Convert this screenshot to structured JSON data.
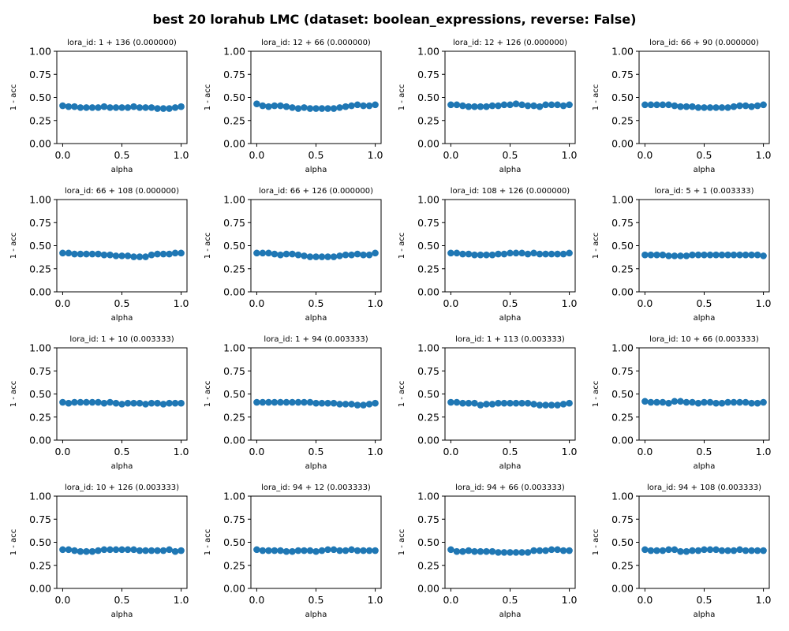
{
  "figure_title": "best 20 lorahub LMC (dataset: boolean_expressions, reverse: False)",
  "chart_data": [
    {
      "type": "scatter",
      "title": "lora_id: 1 + 136 (0.000000)",
      "xlabel": "alpha",
      "ylabel": "1 - acc",
      "xlim": [
        0,
        1
      ],
      "ylim": [
        0,
        1
      ],
      "xticks": [
        "0.0",
        "0.5",
        "1.0"
      ],
      "yticks": [
        "0.00",
        "0.25",
        "0.50",
        "0.75",
        "1.00"
      ],
      "x": [
        0,
        0.05,
        0.1,
        0.15,
        0.2,
        0.25,
        0.3,
        0.35,
        0.4,
        0.45,
        0.5,
        0.55,
        0.6,
        0.65,
        0.7,
        0.75,
        0.8,
        0.85,
        0.9,
        0.95,
        1.0
      ],
      "y": [
        0.41,
        0.4,
        0.4,
        0.39,
        0.39,
        0.39,
        0.39,
        0.4,
        0.39,
        0.39,
        0.39,
        0.39,
        0.4,
        0.39,
        0.39,
        0.39,
        0.38,
        0.38,
        0.38,
        0.39,
        0.4
      ]
    },
    {
      "type": "scatter",
      "title": "lora_id: 12 + 66 (0.000000)",
      "xlabel": "alpha",
      "ylabel": "1 - acc",
      "xlim": [
        0,
        1
      ],
      "ylim": [
        0,
        1
      ],
      "xticks": [
        "0.0",
        "0.5",
        "1.0"
      ],
      "yticks": [
        "0.00",
        "0.25",
        "0.50",
        "0.75",
        "1.00"
      ],
      "x": [
        0,
        0.05,
        0.1,
        0.15,
        0.2,
        0.25,
        0.3,
        0.35,
        0.4,
        0.45,
        0.5,
        0.55,
        0.6,
        0.65,
        0.7,
        0.75,
        0.8,
        0.85,
        0.9,
        0.95,
        1.0
      ],
      "y": [
        0.43,
        0.41,
        0.4,
        0.41,
        0.41,
        0.4,
        0.39,
        0.38,
        0.39,
        0.38,
        0.38,
        0.38,
        0.38,
        0.38,
        0.39,
        0.4,
        0.41,
        0.42,
        0.41,
        0.41,
        0.42
      ]
    },
    {
      "type": "scatter",
      "title": "lora_id: 12 + 126 (0.000000)",
      "xlabel": "alpha",
      "ylabel": "1 - acc",
      "xlim": [
        0,
        1
      ],
      "ylim": [
        0,
        1
      ],
      "xticks": [
        "0.0",
        "0.5",
        "1.0"
      ],
      "yticks": [
        "0.00",
        "0.25",
        "0.50",
        "0.75",
        "1.00"
      ],
      "x": [
        0,
        0.05,
        0.1,
        0.15,
        0.2,
        0.25,
        0.3,
        0.35,
        0.4,
        0.45,
        0.5,
        0.55,
        0.6,
        0.65,
        0.7,
        0.75,
        0.8,
        0.85,
        0.9,
        0.95,
        1.0
      ],
      "y": [
        0.42,
        0.42,
        0.41,
        0.4,
        0.4,
        0.4,
        0.4,
        0.41,
        0.41,
        0.42,
        0.42,
        0.43,
        0.42,
        0.41,
        0.41,
        0.4,
        0.42,
        0.42,
        0.42,
        0.41,
        0.42
      ]
    },
    {
      "type": "scatter",
      "title": "lora_id: 66 + 90 (0.000000)",
      "xlabel": "alpha",
      "ylabel": "1 - acc",
      "xlim": [
        0,
        1
      ],
      "ylim": [
        0,
        1
      ],
      "xticks": [
        "0.0",
        "0.5",
        "1.0"
      ],
      "yticks": [
        "0.00",
        "0.25",
        "0.50",
        "0.75",
        "1.00"
      ],
      "x": [
        0,
        0.05,
        0.1,
        0.15,
        0.2,
        0.25,
        0.3,
        0.35,
        0.4,
        0.45,
        0.5,
        0.55,
        0.6,
        0.65,
        0.7,
        0.75,
        0.8,
        0.85,
        0.9,
        0.95,
        1.0
      ],
      "y": [
        0.42,
        0.42,
        0.42,
        0.42,
        0.42,
        0.41,
        0.4,
        0.4,
        0.4,
        0.39,
        0.39,
        0.39,
        0.39,
        0.39,
        0.39,
        0.4,
        0.41,
        0.41,
        0.4,
        0.41,
        0.42
      ]
    },
    {
      "type": "scatter",
      "title": "lora_id: 66 + 108 (0.000000)",
      "xlabel": "alpha",
      "ylabel": "1 - acc",
      "xlim": [
        0,
        1
      ],
      "ylim": [
        0,
        1
      ],
      "xticks": [
        "0.0",
        "0.5",
        "1.0"
      ],
      "yticks": [
        "0.00",
        "0.25",
        "0.50",
        "0.75",
        "1.00"
      ],
      "x": [
        0,
        0.05,
        0.1,
        0.15,
        0.2,
        0.25,
        0.3,
        0.35,
        0.4,
        0.45,
        0.5,
        0.55,
        0.6,
        0.65,
        0.7,
        0.75,
        0.8,
        0.85,
        0.9,
        0.95,
        1.0
      ],
      "y": [
        0.42,
        0.42,
        0.41,
        0.41,
        0.41,
        0.41,
        0.41,
        0.4,
        0.4,
        0.39,
        0.39,
        0.39,
        0.38,
        0.38,
        0.38,
        0.4,
        0.41,
        0.41,
        0.41,
        0.42,
        0.42
      ]
    },
    {
      "type": "scatter",
      "title": "lora_id: 66 + 126 (0.000000)",
      "xlabel": "alpha",
      "ylabel": "1 - acc",
      "xlim": [
        0,
        1
      ],
      "ylim": [
        0,
        1
      ],
      "xticks": [
        "0.0",
        "0.5",
        "1.0"
      ],
      "yticks": [
        "0.00",
        "0.25",
        "0.50",
        "0.75",
        "1.00"
      ],
      "x": [
        0,
        0.05,
        0.1,
        0.15,
        0.2,
        0.25,
        0.3,
        0.35,
        0.4,
        0.45,
        0.5,
        0.55,
        0.6,
        0.65,
        0.7,
        0.75,
        0.8,
        0.85,
        0.9,
        0.95,
        1.0
      ],
      "y": [
        0.42,
        0.42,
        0.42,
        0.41,
        0.4,
        0.41,
        0.41,
        0.4,
        0.39,
        0.38,
        0.38,
        0.38,
        0.38,
        0.38,
        0.39,
        0.4,
        0.4,
        0.41,
        0.4,
        0.4,
        0.42
      ]
    },
    {
      "type": "scatter",
      "title": "lora_id: 108 + 126 (0.000000)",
      "xlabel": "alpha",
      "ylabel": "1 - acc",
      "xlim": [
        0,
        1
      ],
      "ylim": [
        0,
        1
      ],
      "xticks": [
        "0.0",
        "0.5",
        "1.0"
      ],
      "yticks": [
        "0.00",
        "0.25",
        "0.50",
        "0.75",
        "1.00"
      ],
      "x": [
        0,
        0.05,
        0.1,
        0.15,
        0.2,
        0.25,
        0.3,
        0.35,
        0.4,
        0.45,
        0.5,
        0.55,
        0.6,
        0.65,
        0.7,
        0.75,
        0.8,
        0.85,
        0.9,
        0.95,
        1.0
      ],
      "y": [
        0.42,
        0.42,
        0.41,
        0.41,
        0.4,
        0.4,
        0.4,
        0.4,
        0.41,
        0.41,
        0.42,
        0.42,
        0.42,
        0.41,
        0.42,
        0.41,
        0.41,
        0.41,
        0.41,
        0.41,
        0.42
      ]
    },
    {
      "type": "scatter",
      "title": "lora_id: 5 + 1 (0.003333)",
      "xlabel": "alpha",
      "ylabel": "1 - acc",
      "xlim": [
        0,
        1
      ],
      "ylim": [
        0,
        1
      ],
      "xticks": [
        "0.0",
        "0.5",
        "1.0"
      ],
      "yticks": [
        "0.00",
        "0.25",
        "0.50",
        "0.75",
        "1.00"
      ],
      "x": [
        0,
        0.05,
        0.1,
        0.15,
        0.2,
        0.25,
        0.3,
        0.35,
        0.4,
        0.45,
        0.5,
        0.55,
        0.6,
        0.65,
        0.7,
        0.75,
        0.8,
        0.85,
        0.9,
        0.95,
        1.0
      ],
      "y": [
        0.4,
        0.4,
        0.4,
        0.4,
        0.39,
        0.39,
        0.39,
        0.39,
        0.4,
        0.4,
        0.4,
        0.4,
        0.4,
        0.4,
        0.4,
        0.4,
        0.4,
        0.4,
        0.4,
        0.4,
        0.39
      ]
    },
    {
      "type": "scatter",
      "title": "lora_id: 1 + 10 (0.003333)",
      "xlabel": "alpha",
      "ylabel": "1 - acc",
      "xlim": [
        0,
        1
      ],
      "ylim": [
        0,
        1
      ],
      "xticks": [
        "0.0",
        "0.5",
        "1.0"
      ],
      "yticks": [
        "0.00",
        "0.25",
        "0.50",
        "0.75",
        "1.00"
      ],
      "x": [
        0,
        0.05,
        0.1,
        0.15,
        0.2,
        0.25,
        0.3,
        0.35,
        0.4,
        0.45,
        0.5,
        0.55,
        0.6,
        0.65,
        0.7,
        0.75,
        0.8,
        0.85,
        0.9,
        0.95,
        1.0
      ],
      "y": [
        0.41,
        0.4,
        0.41,
        0.41,
        0.41,
        0.41,
        0.41,
        0.4,
        0.41,
        0.4,
        0.39,
        0.4,
        0.4,
        0.4,
        0.39,
        0.4,
        0.4,
        0.39,
        0.4,
        0.4,
        0.4
      ]
    },
    {
      "type": "scatter",
      "title": "lora_id: 1 + 94 (0.003333)",
      "xlabel": "alpha",
      "ylabel": "1 - acc",
      "xlim": [
        0,
        1
      ],
      "ylim": [
        0,
        1
      ],
      "xticks": [
        "0.0",
        "0.5",
        "1.0"
      ],
      "yticks": [
        "0.00",
        "0.25",
        "0.50",
        "0.75",
        "1.00"
      ],
      "x": [
        0,
        0.05,
        0.1,
        0.15,
        0.2,
        0.25,
        0.3,
        0.35,
        0.4,
        0.45,
        0.5,
        0.55,
        0.6,
        0.65,
        0.7,
        0.75,
        0.8,
        0.85,
        0.9,
        0.95,
        1.0
      ],
      "y": [
        0.41,
        0.41,
        0.41,
        0.41,
        0.41,
        0.41,
        0.41,
        0.41,
        0.41,
        0.41,
        0.4,
        0.4,
        0.4,
        0.4,
        0.39,
        0.39,
        0.39,
        0.38,
        0.38,
        0.39,
        0.4
      ]
    },
    {
      "type": "scatter",
      "title": "lora_id: 1 + 113 (0.003333)",
      "xlabel": "alpha",
      "ylabel": "1 - acc",
      "xlim": [
        0,
        1
      ],
      "ylim": [
        0,
        1
      ],
      "xticks": [
        "0.0",
        "0.5",
        "1.0"
      ],
      "yticks": [
        "0.00",
        "0.25",
        "0.50",
        "0.75",
        "1.00"
      ],
      "x": [
        0,
        0.05,
        0.1,
        0.15,
        0.2,
        0.25,
        0.3,
        0.35,
        0.4,
        0.45,
        0.5,
        0.55,
        0.6,
        0.65,
        0.7,
        0.75,
        0.8,
        0.85,
        0.9,
        0.95,
        1.0
      ],
      "y": [
        0.41,
        0.41,
        0.4,
        0.4,
        0.4,
        0.38,
        0.39,
        0.39,
        0.4,
        0.4,
        0.4,
        0.4,
        0.4,
        0.4,
        0.39,
        0.38,
        0.38,
        0.38,
        0.38,
        0.39,
        0.4
      ]
    },
    {
      "type": "scatter",
      "title": "lora_id: 10 + 66 (0.003333)",
      "xlabel": "alpha",
      "ylabel": "1 - acc",
      "xlim": [
        0,
        1
      ],
      "ylim": [
        0,
        1
      ],
      "xticks": [
        "0.0",
        "0.5",
        "1.0"
      ],
      "yticks": [
        "0.00",
        "0.25",
        "0.50",
        "0.75",
        "1.00"
      ],
      "x": [
        0,
        0.05,
        0.1,
        0.15,
        0.2,
        0.25,
        0.3,
        0.35,
        0.4,
        0.45,
        0.5,
        0.55,
        0.6,
        0.65,
        0.7,
        0.75,
        0.8,
        0.85,
        0.9,
        0.95,
        1.0
      ],
      "y": [
        0.42,
        0.41,
        0.41,
        0.41,
        0.4,
        0.42,
        0.42,
        0.41,
        0.41,
        0.4,
        0.41,
        0.41,
        0.4,
        0.4,
        0.41,
        0.41,
        0.41,
        0.41,
        0.4,
        0.4,
        0.41
      ]
    },
    {
      "type": "scatter",
      "title": "lora_id: 10 + 126 (0.003333)",
      "xlabel": "alpha",
      "ylabel": "1 - acc",
      "xlim": [
        0,
        1
      ],
      "ylim": [
        0,
        1
      ],
      "xticks": [
        "0.0",
        "0.5",
        "1.0"
      ],
      "yticks": [
        "0.00",
        "0.25",
        "0.50",
        "0.75",
        "1.00"
      ],
      "x": [
        0,
        0.05,
        0.1,
        0.15,
        0.2,
        0.25,
        0.3,
        0.35,
        0.4,
        0.45,
        0.5,
        0.55,
        0.6,
        0.65,
        0.7,
        0.75,
        0.8,
        0.85,
        0.9,
        0.95,
        1.0
      ],
      "y": [
        0.42,
        0.42,
        0.41,
        0.4,
        0.4,
        0.4,
        0.41,
        0.42,
        0.42,
        0.42,
        0.42,
        0.42,
        0.42,
        0.41,
        0.41,
        0.41,
        0.41,
        0.41,
        0.42,
        0.4,
        0.41
      ]
    },
    {
      "type": "scatter",
      "title": "lora_id: 94 + 12 (0.003333)",
      "xlabel": "alpha",
      "ylabel": "1 - acc",
      "xlim": [
        0,
        1
      ],
      "ylim": [
        0,
        1
      ],
      "xticks": [
        "0.0",
        "0.5",
        "1.0"
      ],
      "yticks": [
        "0.00",
        "0.25",
        "0.50",
        "0.75",
        "1.00"
      ],
      "x": [
        0,
        0.05,
        0.1,
        0.15,
        0.2,
        0.25,
        0.3,
        0.35,
        0.4,
        0.45,
        0.5,
        0.55,
        0.6,
        0.65,
        0.7,
        0.75,
        0.8,
        0.85,
        0.9,
        0.95,
        1.0
      ],
      "y": [
        0.42,
        0.41,
        0.41,
        0.41,
        0.41,
        0.4,
        0.4,
        0.41,
        0.41,
        0.41,
        0.4,
        0.41,
        0.42,
        0.42,
        0.41,
        0.41,
        0.42,
        0.41,
        0.41,
        0.41,
        0.41
      ]
    },
    {
      "type": "scatter",
      "title": "lora_id: 94 + 66 (0.003333)",
      "xlabel": "alpha",
      "ylabel": "1 - acc",
      "xlim": [
        0,
        1
      ],
      "ylim": [
        0,
        1
      ],
      "xticks": [
        "0.0",
        "0.5",
        "1.0"
      ],
      "yticks": [
        "0.00",
        "0.25",
        "0.50",
        "0.75",
        "1.00"
      ],
      "x": [
        0,
        0.05,
        0.1,
        0.15,
        0.2,
        0.25,
        0.3,
        0.35,
        0.4,
        0.45,
        0.5,
        0.55,
        0.6,
        0.65,
        0.7,
        0.75,
        0.8,
        0.85,
        0.9,
        0.95,
        1.0
      ],
      "y": [
        0.42,
        0.4,
        0.4,
        0.41,
        0.4,
        0.4,
        0.4,
        0.4,
        0.39,
        0.39,
        0.39,
        0.39,
        0.39,
        0.39,
        0.41,
        0.41,
        0.41,
        0.42,
        0.42,
        0.41,
        0.41
      ]
    },
    {
      "type": "scatter",
      "title": "lora_id: 94 + 108 (0.003333)",
      "xlabel": "alpha",
      "ylabel": "1 - acc",
      "xlim": [
        0,
        1
      ],
      "ylim": [
        0,
        1
      ],
      "xticks": [
        "0.0",
        "0.5",
        "1.0"
      ],
      "yticks": [
        "0.00",
        "0.25",
        "0.50",
        "0.75",
        "1.00"
      ],
      "x": [
        0,
        0.05,
        0.1,
        0.15,
        0.2,
        0.25,
        0.3,
        0.35,
        0.4,
        0.45,
        0.5,
        0.55,
        0.6,
        0.65,
        0.7,
        0.75,
        0.8,
        0.85,
        0.9,
        0.95,
        1.0
      ],
      "y": [
        0.42,
        0.41,
        0.41,
        0.41,
        0.42,
        0.42,
        0.4,
        0.4,
        0.41,
        0.41,
        0.42,
        0.42,
        0.42,
        0.41,
        0.41,
        0.41,
        0.42,
        0.41,
        0.41,
        0.41,
        0.41
      ]
    }
  ],
  "colors": {
    "marker": "#1f77b4",
    "axes": "#000000",
    "background": "#ffffff"
  }
}
